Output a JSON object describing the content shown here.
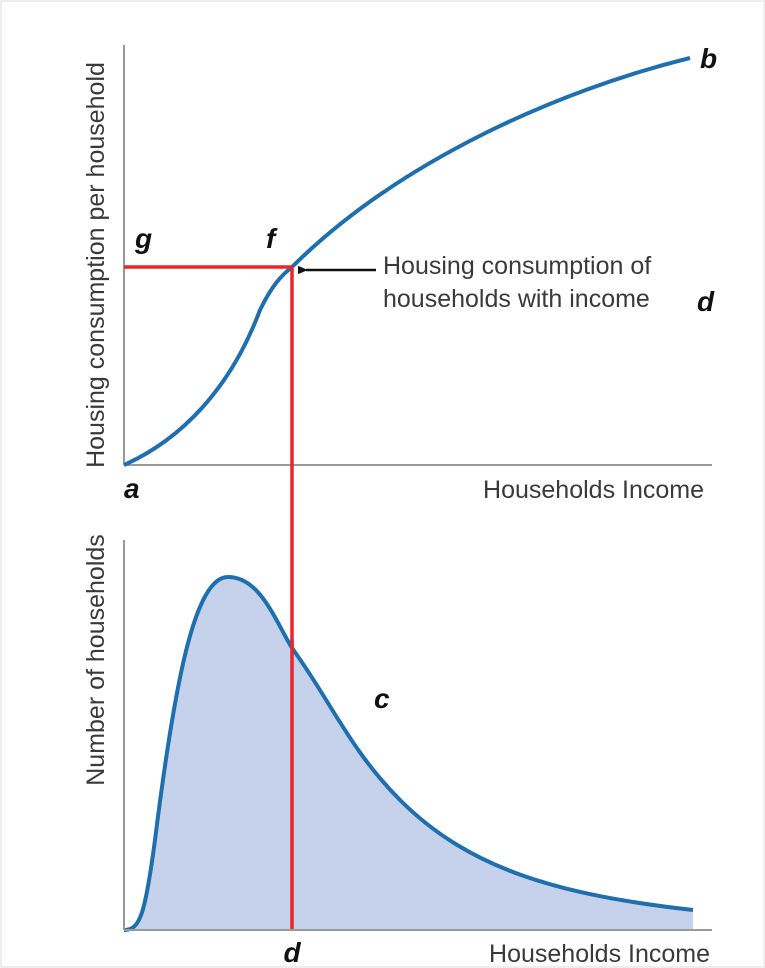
{
  "top_panel": {
    "y_axis_label": "Housing consumption per household",
    "x_axis_label": "Households Income",
    "point_labels": {
      "a": "a",
      "b": "b",
      "g": "g",
      "f": "f"
    },
    "annotation": {
      "line1": "Housing consumption of",
      "line2": "households with income",
      "point": "d"
    }
  },
  "bottom_panel": {
    "y_axis_label": "Number of households",
    "x_axis_label": "Households Income",
    "point_labels": {
      "c": "c",
      "d": "d"
    }
  }
}
